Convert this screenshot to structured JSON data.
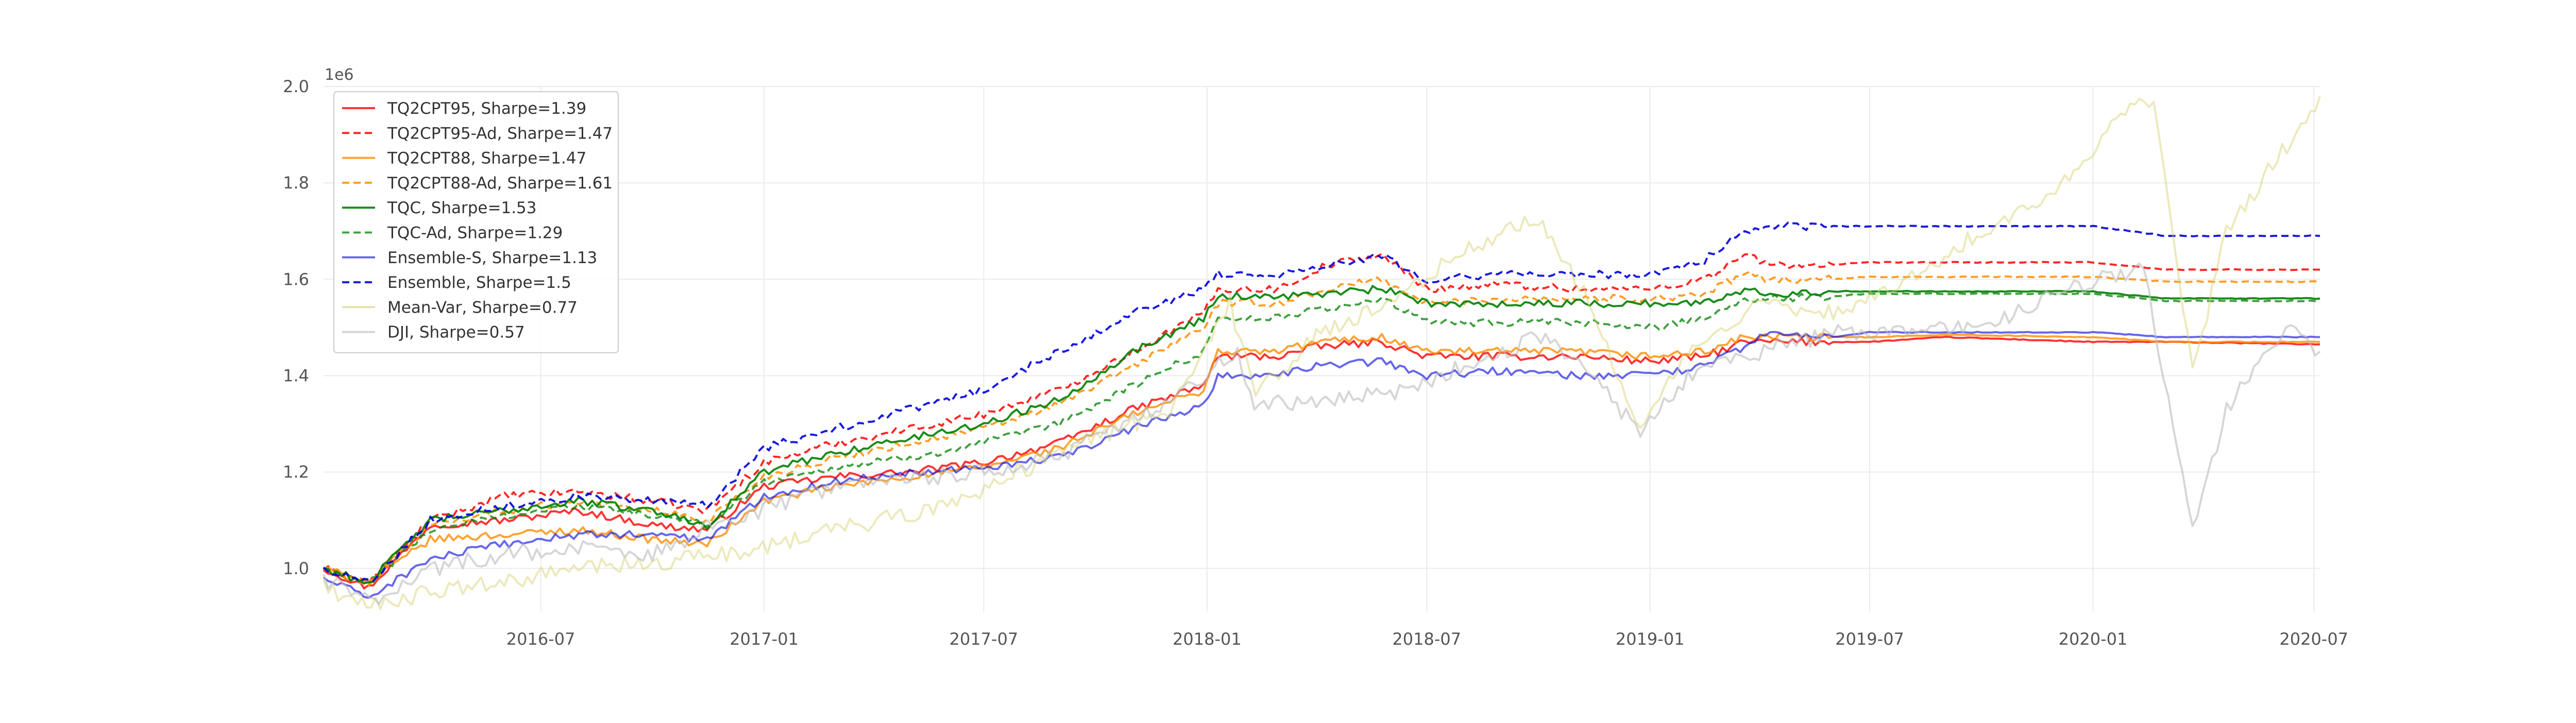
{
  "chart_data": {
    "type": "line",
    "title": "",
    "xlabel": "",
    "ylabel": "",
    "y_offset_label": "1e6",
    "ylim": [
      0.91,
      2.0
    ],
    "xlim": [
      "2016-01-04",
      "2020-07-06"
    ],
    "y_ticks": [
      1.0,
      1.2,
      1.4,
      1.6,
      1.8,
      2.0
    ],
    "y_tick_labels": [
      "1.0",
      "1.2",
      "1.4",
      "1.6",
      "1.8",
      "2.0"
    ],
    "x_ticks": [
      "2016-07-01",
      "2017-01-01",
      "2017-07-01",
      "2018-01-01",
      "2018-07-01",
      "2019-01-01",
      "2019-07-01",
      "2020-01-01",
      "2020-07-01"
    ],
    "x_tick_labels": [
      "2016-07",
      "2017-01",
      "2017-07",
      "2018-01",
      "2018-07",
      "2019-01",
      "2019-07",
      "2020-01",
      "2020-07"
    ],
    "grid": true,
    "legend_position": "top-left",
    "series": [
      {
        "name": "TQ2CPT95, Sharpe=1.39",
        "color": "#ff0000",
        "dash": "solid",
        "opacity": 0.8,
        "x": [
          "2016-01-04",
          "2016-02-10",
          "2016-04-01",
          "2016-06-01",
          "2016-08-01",
          "2016-10-01",
          "2016-11-15",
          "2017-01-01",
          "2017-03-01",
          "2017-05-01",
          "2017-07-01",
          "2017-09-01",
          "2017-11-01",
          "2017-12-29",
          "2018-01-10",
          "2018-03-01",
          "2018-04-01",
          "2018-05-25",
          "2018-07-01",
          "2018-09-01",
          "2018-11-01",
          "2019-01-01",
          "2019-02-15",
          "2019-03-20",
          "2019-04-10",
          "2019-06-01",
          "2019-07-01",
          "2019-09-01",
          "2020-01-01",
          "2020-03-01",
          "2020-07-06"
        ],
        "y": [
          1.0,
          0.96,
          1.09,
          1.1,
          1.12,
          1.09,
          1.08,
          1.17,
          1.19,
          1.2,
          1.22,
          1.26,
          1.33,
          1.38,
          1.44,
          1.44,
          1.46,
          1.47,
          1.44,
          1.44,
          1.44,
          1.43,
          1.44,
          1.47,
          1.47,
          1.47,
          1.47,
          1.48,
          1.47,
          1.47,
          1.465
        ]
      },
      {
        "name": "TQ2CPT95-Ad, Sharpe=1.47",
        "color": "#ff0000",
        "dash": "dashed",
        "opacity": 0.85,
        "x": [
          "2016-01-04",
          "2016-02-10",
          "2016-04-01",
          "2016-06-01",
          "2016-08-01",
          "2016-10-01",
          "2016-11-15",
          "2017-01-01",
          "2017-03-01",
          "2017-05-01",
          "2017-07-01",
          "2017-09-01",
          "2017-11-01",
          "2017-12-29",
          "2018-01-10",
          "2018-03-01",
          "2018-04-10",
          "2018-05-25",
          "2018-07-01",
          "2018-09-01",
          "2018-11-01",
          "2019-01-01",
          "2019-02-15",
          "2019-03-20",
          "2019-04-10",
          "2019-06-01",
          "2019-07-01",
          "2019-09-01",
          "2020-01-01",
          "2020-03-01",
          "2020-07-06"
        ],
        "y": [
          1.0,
          0.97,
          1.1,
          1.15,
          1.16,
          1.14,
          1.12,
          1.22,
          1.26,
          1.29,
          1.32,
          1.37,
          1.45,
          1.53,
          1.58,
          1.58,
          1.63,
          1.65,
          1.58,
          1.59,
          1.58,
          1.58,
          1.6,
          1.65,
          1.63,
          1.63,
          1.635,
          1.635,
          1.635,
          1.62,
          1.62
        ]
      },
      {
        "name": "TQ2CPT88, Sharpe=1.47",
        "color": "#ff8c00",
        "dash": "solid",
        "opacity": 0.8,
        "x": [
          "2016-01-04",
          "2016-02-10",
          "2016-04-01",
          "2016-06-01",
          "2016-08-01",
          "2016-10-01",
          "2016-11-15",
          "2017-01-01",
          "2017-03-01",
          "2017-05-01",
          "2017-07-01",
          "2017-09-01",
          "2017-11-01",
          "2017-12-29",
          "2018-01-10",
          "2018-03-01",
          "2018-04-01",
          "2018-05-25",
          "2018-07-01",
          "2018-09-01",
          "2018-11-01",
          "2019-01-01",
          "2019-02-15",
          "2019-03-20",
          "2019-04-10",
          "2019-06-01",
          "2019-07-01",
          "2019-09-01",
          "2020-01-01",
          "2020-03-01",
          "2020-07-06"
        ],
        "y": [
          1.0,
          0.97,
          1.06,
          1.07,
          1.08,
          1.06,
          1.05,
          1.14,
          1.17,
          1.19,
          1.21,
          1.25,
          1.32,
          1.37,
          1.45,
          1.45,
          1.47,
          1.48,
          1.45,
          1.45,
          1.45,
          1.44,
          1.45,
          1.48,
          1.48,
          1.48,
          1.48,
          1.485,
          1.48,
          1.47,
          1.47
        ]
      },
      {
        "name": "TQ2CPT88-Ad, Sharpe=1.61",
        "color": "#ff8c00",
        "dash": "dashed",
        "opacity": 0.85,
        "x": [
          "2016-01-04",
          "2016-02-10",
          "2016-04-01",
          "2016-06-01",
          "2016-08-01",
          "2016-10-01",
          "2016-11-15",
          "2017-01-01",
          "2017-03-01",
          "2017-05-01",
          "2017-07-01",
          "2017-09-01",
          "2017-11-01",
          "2017-12-29",
          "2018-01-10",
          "2018-03-01",
          "2018-04-10",
          "2018-05-25",
          "2018-07-01",
          "2018-09-01",
          "2018-11-01",
          "2019-01-01",
          "2019-02-15",
          "2019-03-20",
          "2019-04-10",
          "2019-06-01",
          "2019-07-01",
          "2019-09-01",
          "2020-01-01",
          "2020-03-01",
          "2020-07-06"
        ],
        "y": [
          1.0,
          0.97,
          1.09,
          1.12,
          1.14,
          1.12,
          1.1,
          1.19,
          1.23,
          1.26,
          1.29,
          1.34,
          1.42,
          1.5,
          1.55,
          1.55,
          1.58,
          1.6,
          1.55,
          1.56,
          1.56,
          1.56,
          1.57,
          1.61,
          1.6,
          1.6,
          1.605,
          1.605,
          1.605,
          1.595,
          1.595
        ]
      },
      {
        "name": "TQC, Sharpe=1.53",
        "color": "#008000",
        "dash": "solid",
        "opacity": 0.9,
        "x": [
          "2016-01-04",
          "2016-02-10",
          "2016-04-01",
          "2016-06-01",
          "2016-08-01",
          "2016-10-01",
          "2016-11-15",
          "2017-01-01",
          "2017-03-01",
          "2017-05-01",
          "2017-07-01",
          "2017-09-01",
          "2017-11-01",
          "2017-12-29",
          "2018-01-10",
          "2018-03-01",
          "2018-04-10",
          "2018-05-25",
          "2018-07-01",
          "2018-09-01",
          "2018-11-01",
          "2019-01-01",
          "2019-02-15",
          "2019-03-20",
          "2019-04-10",
          "2019-06-01",
          "2019-07-01",
          "2019-09-01",
          "2020-01-01",
          "2020-03-01",
          "2020-07-06"
        ],
        "y": [
          1.0,
          0.97,
          1.1,
          1.12,
          1.14,
          1.12,
          1.09,
          1.2,
          1.24,
          1.27,
          1.3,
          1.35,
          1.45,
          1.52,
          1.565,
          1.565,
          1.57,
          1.58,
          1.55,
          1.55,
          1.55,
          1.55,
          1.55,
          1.58,
          1.57,
          1.575,
          1.575,
          1.575,
          1.575,
          1.56,
          1.56
        ]
      },
      {
        "name": "TQC-Ad, Sharpe=1.29",
        "color": "#008000",
        "dash": "dashed",
        "opacity": 0.75,
        "x": [
          "2016-01-04",
          "2016-02-10",
          "2016-04-01",
          "2016-06-01",
          "2016-08-01",
          "2016-10-01",
          "2016-11-15",
          "2017-01-01",
          "2017-03-01",
          "2017-05-01",
          "2017-07-01",
          "2017-09-01",
          "2017-11-01",
          "2017-12-29",
          "2018-01-10",
          "2018-03-01",
          "2018-04-10",
          "2018-05-25",
          "2018-07-01",
          "2018-09-01",
          "2018-11-01",
          "2019-01-01",
          "2019-02-15",
          "2019-03-20",
          "2019-04-10",
          "2019-06-01",
          "2019-07-01",
          "2019-09-01",
          "2020-01-01",
          "2020-03-01",
          "2020-07-06"
        ],
        "y": [
          1.0,
          0.97,
          1.08,
          1.11,
          1.13,
          1.11,
          1.09,
          1.18,
          1.21,
          1.23,
          1.26,
          1.3,
          1.38,
          1.45,
          1.52,
          1.52,
          1.54,
          1.56,
          1.51,
          1.51,
          1.51,
          1.5,
          1.52,
          1.56,
          1.56,
          1.565,
          1.57,
          1.57,
          1.57,
          1.555,
          1.555
        ]
      },
      {
        "name": "Ensemble-S, Sharpe=1.13",
        "color": "#0000dd",
        "dash": "solid",
        "opacity": 0.6,
        "x": [
          "2016-01-04",
          "2016-02-10",
          "2016-04-01",
          "2016-06-01",
          "2016-08-01",
          "2016-10-01",
          "2016-11-15",
          "2017-01-01",
          "2017-03-01",
          "2017-05-01",
          "2017-07-01",
          "2017-09-01",
          "2017-11-01",
          "2017-12-29",
          "2018-01-10",
          "2018-03-01",
          "2018-04-01",
          "2018-05-25",
          "2018-07-01",
          "2018-09-01",
          "2018-11-01",
          "2019-01-01",
          "2019-02-15",
          "2019-03-20",
          "2019-04-10",
          "2019-06-01",
          "2019-07-01",
          "2019-09-01",
          "2020-01-01",
          "2020-03-01",
          "2020-07-06"
        ],
        "y": [
          0.98,
          0.94,
          1.02,
          1.05,
          1.07,
          1.07,
          1.06,
          1.15,
          1.18,
          1.2,
          1.21,
          1.23,
          1.29,
          1.34,
          1.4,
          1.4,
          1.42,
          1.43,
          1.4,
          1.41,
          1.4,
          1.4,
          1.42,
          1.46,
          1.49,
          1.48,
          1.49,
          1.49,
          1.49,
          1.48,
          1.48
        ]
      },
      {
        "name": "Ensemble, Sharpe=1.5",
        "color": "#0000dd",
        "dash": "dashed",
        "opacity": 0.9,
        "x": [
          "2016-01-04",
          "2016-02-10",
          "2016-04-01",
          "2016-06-01",
          "2016-08-01",
          "2016-10-01",
          "2016-11-15",
          "2017-01-01",
          "2017-03-01",
          "2017-05-01",
          "2017-07-01",
          "2017-09-01",
          "2017-11-01",
          "2017-12-29",
          "2018-01-10",
          "2018-03-01",
          "2018-04-10",
          "2018-05-25",
          "2018-07-01",
          "2018-09-01",
          "2018-11-01",
          "2019-01-01",
          "2019-02-15",
          "2019-03-20",
          "2019-04-10",
          "2019-06-01",
          "2019-07-01",
          "2019-09-01",
          "2020-01-01",
          "2020-03-01",
          "2020-07-06"
        ],
        "y": [
          1.0,
          0.97,
          1.1,
          1.13,
          1.15,
          1.14,
          1.13,
          1.25,
          1.29,
          1.33,
          1.37,
          1.45,
          1.53,
          1.58,
          1.61,
          1.61,
          1.63,
          1.65,
          1.6,
          1.61,
          1.61,
          1.61,
          1.64,
          1.7,
          1.71,
          1.71,
          1.71,
          1.71,
          1.71,
          1.69,
          1.69
        ]
      },
      {
        "name": "Mean-Var, Sharpe=0.77",
        "color": "#d4cf6a",
        "dash": "solid",
        "opacity": 0.45,
        "x": [
          "2016-01-04",
          "2016-02-01",
          "2016-04-01",
          "2016-06-01",
          "2016-08-01",
          "2016-10-01",
          "2016-12-01",
          "2017-03-01",
          "2017-06-01",
          "2017-09-01",
          "2017-12-01",
          "2018-01-20",
          "2018-02-10",
          "2018-04-01",
          "2018-06-01",
          "2018-08-01",
          "2018-10-01",
          "2018-11-15",
          "2018-12-24",
          "2019-02-01",
          "2019-04-01",
          "2019-06-01",
          "2019-08-01",
          "2019-10-01",
          "2019-12-01",
          "2020-01-20",
          "2020-02-20",
          "2020-03-23",
          "2020-04-20",
          "2020-06-01",
          "2020-07-06"
        ],
        "y": [
          0.97,
          0.92,
          0.95,
          0.97,
          1.0,
          1.01,
          1.03,
          1.08,
          1.13,
          1.24,
          1.33,
          1.55,
          1.36,
          1.48,
          1.55,
          1.66,
          1.73,
          1.54,
          1.28,
          1.45,
          1.55,
          1.53,
          1.6,
          1.7,
          1.78,
          1.93,
          1.98,
          1.4,
          1.7,
          1.85,
          1.98
        ]
      },
      {
        "name": "DJI, Sharpe=0.57",
        "color": "#bbbbbb",
        "dash": "solid",
        "opacity": 0.6,
        "x": [
          "2016-01-04",
          "2016-02-11",
          "2016-04-01",
          "2016-06-01",
          "2016-08-01",
          "2016-10-01",
          "2016-12-01",
          "2017-03-01",
          "2017-06-01",
          "2017-09-01",
          "2017-12-01",
          "2018-01-26",
          "2018-02-09",
          "2018-04-01",
          "2018-06-01",
          "2018-08-01",
          "2018-10-03",
          "2018-11-15",
          "2018-12-24",
          "2019-02-01",
          "2019-04-01",
          "2019-06-01",
          "2019-08-01",
          "2019-10-01",
          "2019-12-01",
          "2020-01-20",
          "2020-02-12",
          "2020-03-23",
          "2020-04-20",
          "2020-06-08",
          "2020-07-06"
        ],
        "y": [
          0.98,
          0.93,
          1.0,
          1.03,
          1.04,
          1.03,
          1.1,
          1.17,
          1.19,
          1.23,
          1.35,
          1.45,
          1.34,
          1.35,
          1.36,
          1.42,
          1.48,
          1.4,
          1.28,
          1.4,
          1.45,
          1.49,
          1.49,
          1.5,
          1.57,
          1.61,
          1.62,
          1.08,
          1.33,
          1.5,
          1.45
        ]
      }
    ]
  }
}
